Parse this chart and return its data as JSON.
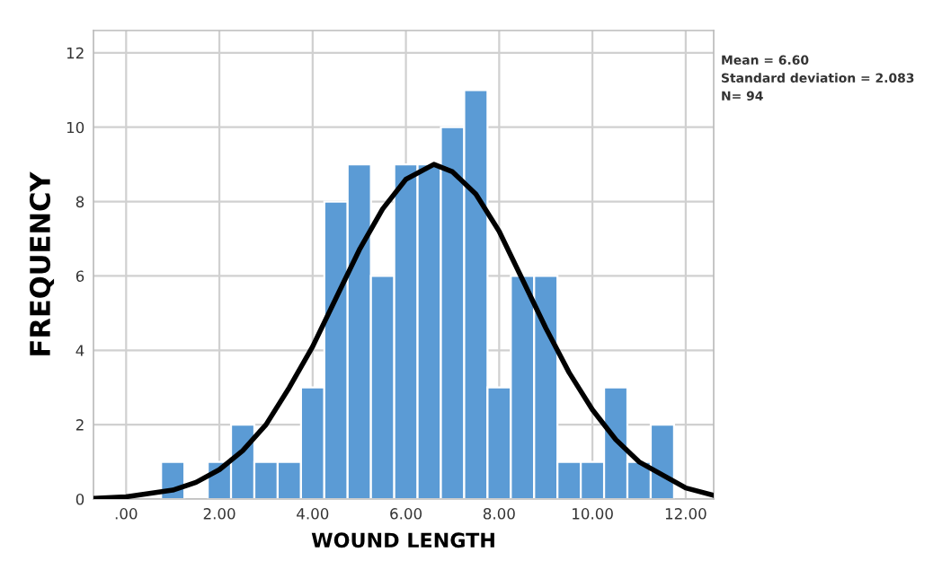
{
  "chart_data": {
    "type": "histogram",
    "xlabel": "WOUND LENGTH",
    "ylabel": "FREQUENCY",
    "bins": [
      0.75,
      1.25,
      1.75,
      2.25,
      2.75,
      3.25,
      3.75,
      4.25,
      4.75,
      5.25,
      5.75,
      6.25,
      6.75,
      7.25,
      7.75,
      8.25,
      8.75,
      9.25,
      9.75,
      10.25,
      10.75,
      11.25,
      11.75
    ],
    "values": [
      1,
      0,
      1,
      2,
      1,
      1,
      3,
      8,
      9,
      6,
      9,
      9,
      10,
      11,
      3,
      6,
      6,
      1,
      1,
      3,
      1,
      2
    ],
    "color": "#5b9bd5",
    "series": [
      {
        "type": "line",
        "color": "#000000",
        "x": [
          -0.7,
          0,
          1,
          1.5,
          2,
          2.5,
          3,
          3.5,
          4,
          4.5,
          5,
          5.5,
          6,
          6.6,
          7,
          7.5,
          8,
          8.5,
          9,
          9.5,
          10,
          10.5,
          11,
          12,
          12.6
        ],
        "values": [
          0.02,
          0.06,
          0.24,
          0.45,
          0.79,
          1.3,
          2.0,
          3.0,
          4.1,
          5.4,
          6.7,
          7.8,
          8.6,
          9.0,
          8.8,
          8.2,
          7.2,
          5.9,
          4.6,
          3.4,
          2.4,
          1.6,
          1.0,
          0.3,
          0.1
        ]
      }
    ],
    "xlim": [
      -0.7,
      12.6
    ],
    "ylim": [
      0,
      12.6
    ],
    "xticks": [
      {
        "value": 0,
        "label": ".00"
      },
      {
        "value": 2,
        "label": "2.00"
      },
      {
        "value": 4,
        "label": "4.00"
      },
      {
        "value": 6,
        "label": "6.00"
      },
      {
        "value": 8,
        "label": "8.00"
      },
      {
        "value": 10,
        "label": "10.00"
      },
      {
        "value": 12,
        "label": "12.00"
      }
    ],
    "yticks": [
      0,
      2,
      4,
      6,
      8,
      10,
      12
    ],
    "grid": true,
    "annotations": [
      "Mean = 6.60",
      "Standard deviation = 2.083",
      "N= 94"
    ]
  }
}
